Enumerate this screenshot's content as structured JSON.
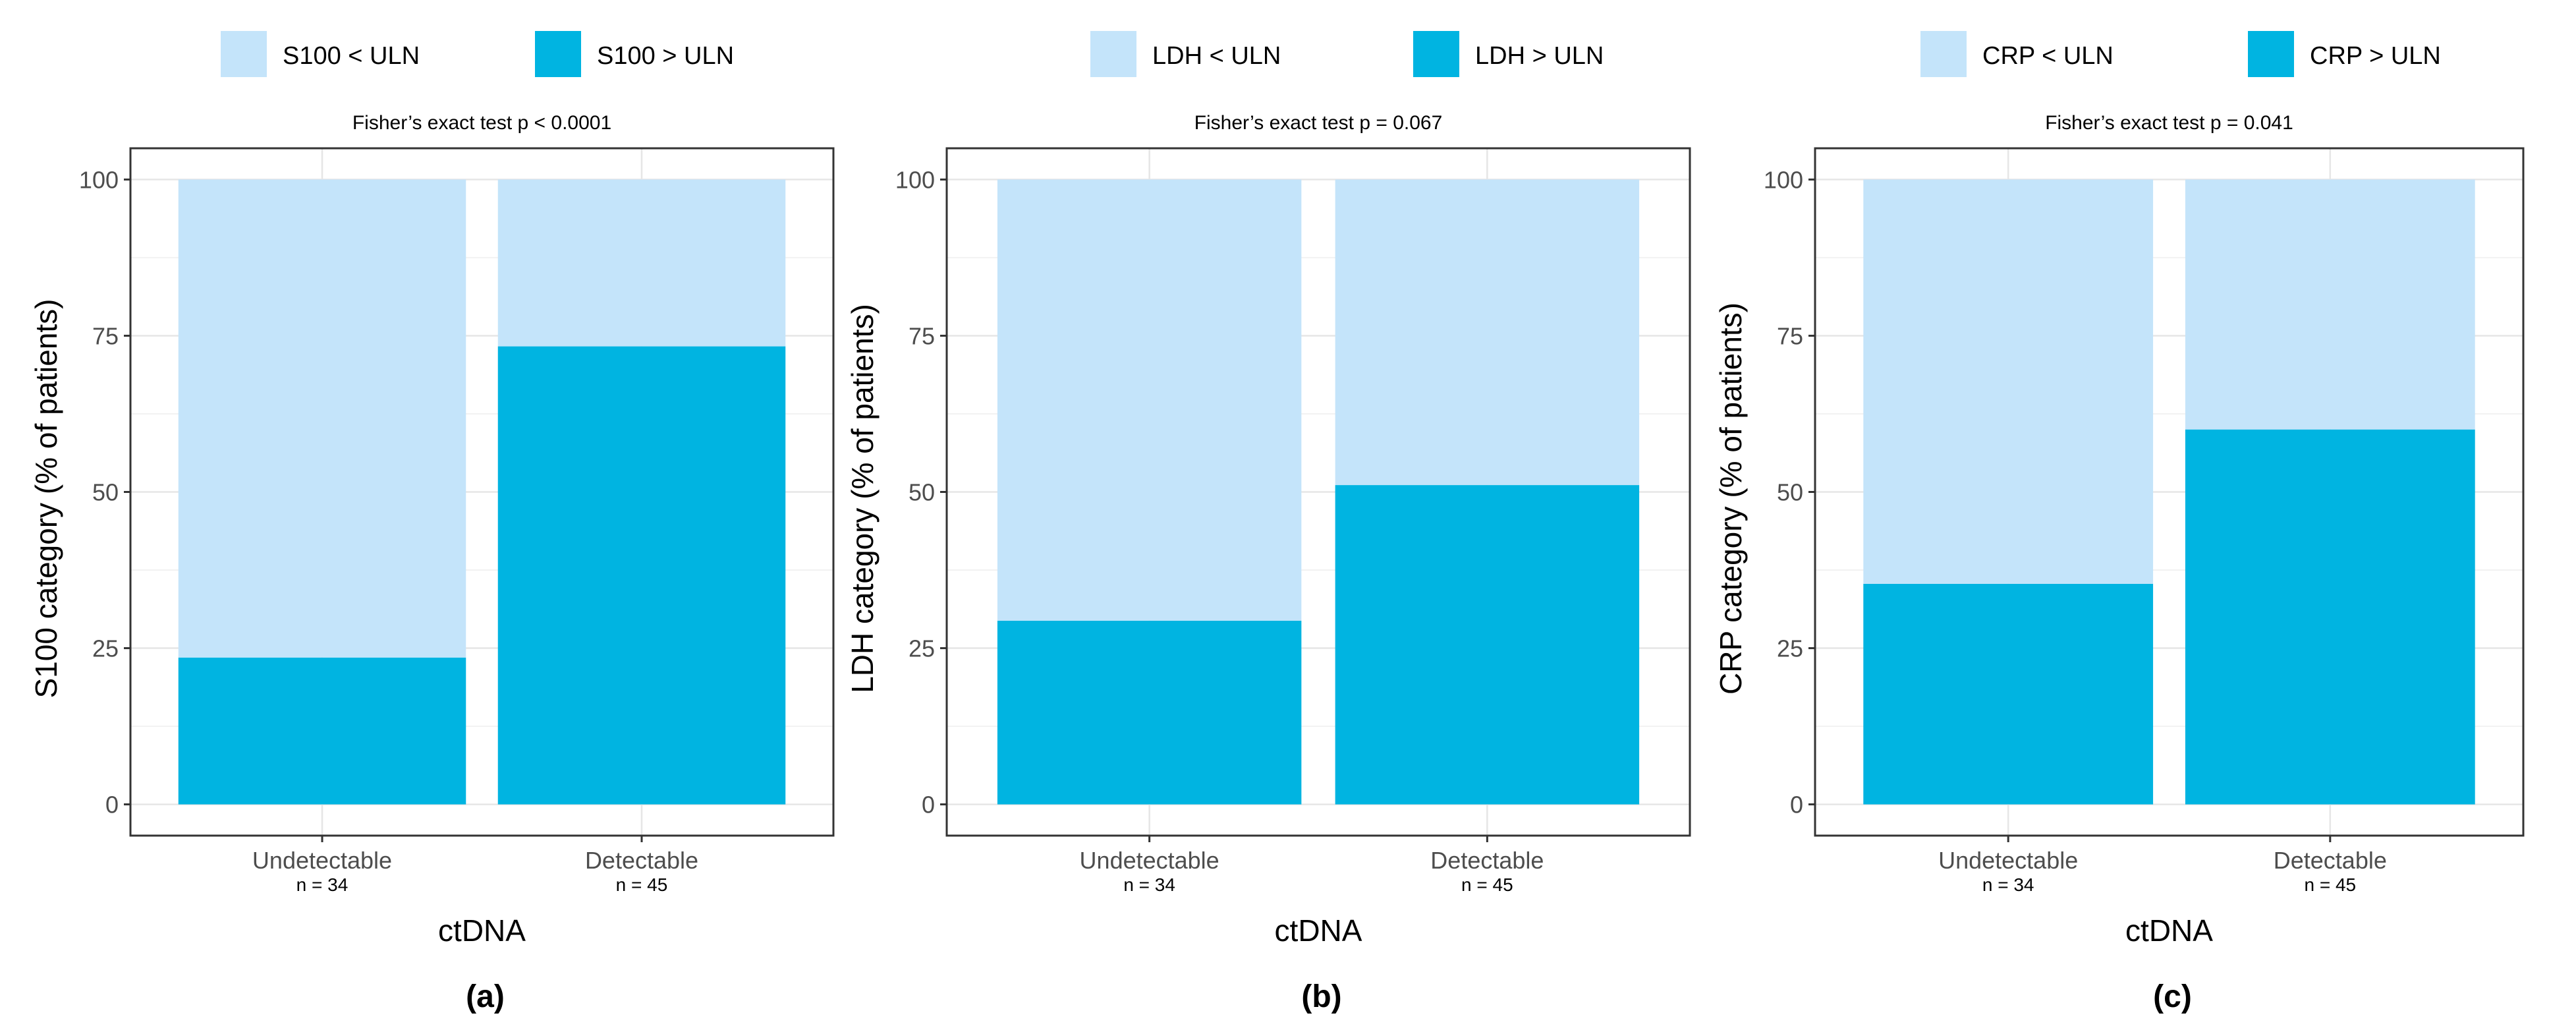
{
  "colors": {
    "below": "#c4e4fa",
    "above": "#00b4e1",
    "grid_major": "#e6e6e6",
    "grid_minor": "#f2f2f2",
    "frame": "#333333",
    "tick_text": "#4d4d4d",
    "title_text": "#000000"
  },
  "chart_data": [
    {
      "type": "bar",
      "stacked": true,
      "panel_label": "(a)",
      "title": "Fisher’s exact test p < 0.0001",
      "legend": {
        "below_label": "S100 < ULN",
        "above_label": "S100 > ULN"
      },
      "xlabel": "ctDNA",
      "ylabel": "S100 category (% of patients)",
      "categories": [
        "Undetectable",
        "Detectable"
      ],
      "category_n": [
        "n = 34",
        "n = 45"
      ],
      "series": [
        {
          "name": "S100 > ULN",
          "values": [
            23.5,
            73.3
          ]
        },
        {
          "name": "S100 < ULN",
          "values": [
            76.5,
            26.7
          ]
        }
      ],
      "ylim": [
        -5,
        105
      ],
      "yticks": [
        0,
        25,
        50,
        75,
        100
      ]
    },
    {
      "type": "bar",
      "stacked": true,
      "panel_label": "(b)",
      "title": "Fisher’s exact test p = 0.067",
      "legend": {
        "below_label": "LDH < ULN",
        "above_label": "LDH > ULN"
      },
      "xlabel": "ctDNA",
      "ylabel": "LDH category (% of patients)",
      "categories": [
        "Undetectable",
        "Detectable"
      ],
      "category_n": [
        "n = 34",
        "n = 45"
      ],
      "series": [
        {
          "name": "LDH > ULN",
          "values": [
            29.4,
            51.1
          ]
        },
        {
          "name": "LDH < ULN",
          "values": [
            70.6,
            48.9
          ]
        }
      ],
      "ylim": [
        -5,
        105
      ],
      "yticks": [
        0,
        25,
        50,
        75,
        100
      ]
    },
    {
      "type": "bar",
      "stacked": true,
      "panel_label": "(c)",
      "title": "Fisher’s exact test p = 0.041",
      "legend": {
        "below_label": "CRP < ULN",
        "above_label": "CRP > ULN"
      },
      "xlabel": "ctDNA",
      "ylabel": "CRP category (% of patients)",
      "categories": [
        "Undetectable",
        "Detectable"
      ],
      "category_n": [
        "n = 34",
        "n = 45"
      ],
      "series": [
        {
          "name": "CRP > ULN",
          "values": [
            35.3,
            60.0
          ]
        },
        {
          "name": "CRP < ULN",
          "values": [
            64.7,
            40.0
          ]
        }
      ],
      "ylim": [
        -5,
        105
      ],
      "yticks": [
        0,
        25,
        50,
        75,
        100
      ]
    }
  ]
}
